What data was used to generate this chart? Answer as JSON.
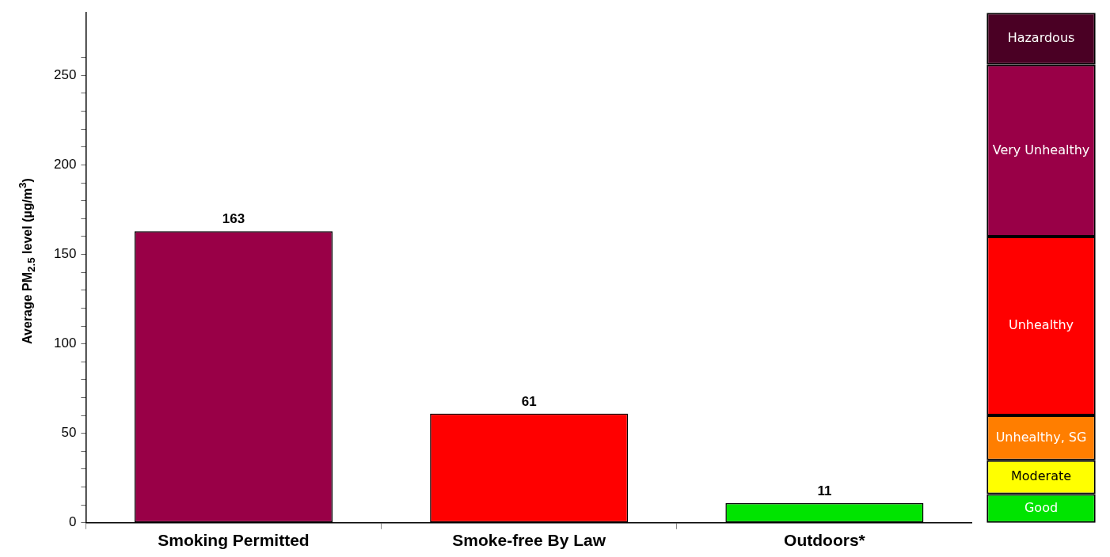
{
  "chart_data": [
    {
      "type": "bar",
      "ylabel": "Average PM$_{2.5}$ level (µg/m$^{3}$)",
      "categories": [
        "Smoking Permitted",
        "Smoke-free By Law",
        "Outdoors*"
      ],
      "values": [
        163,
        61,
        11
      ],
      "colors": [
        "#990047",
        "#ff0000",
        "#00e400"
      ],
      "ylim": [
        0,
        285
      ],
      "yticks": [
        0,
        {
          "value": 10,
          "label": null
        },
        {
          "value": 20,
          "label": null
        },
        {
          "value": 30,
          "label": null
        },
        {
          "value": 40,
          "label": null
        },
        50,
        {
          "value": 60,
          "label": null
        },
        {
          "value": 70,
          "label": null
        },
        {
          "value": 80,
          "label": null
        },
        {
          "value": 90,
          "label": null
        },
        100,
        {
          "value": 110,
          "label": null
        },
        {
          "value": 120,
          "label": null
        },
        {
          "value": 130,
          "label": null
        },
        {
          "value": 140,
          "label": null
        },
        150,
        {
          "value": 160,
          "label": null
        },
        {
          "value": 170,
          "label": null
        },
        {
          "value": 180,
          "label": null
        },
        {
          "value": 190,
          "label": null
        },
        200,
        {
          "value": 210,
          "label": null
        },
        {
          "value": 220,
          "label": null
        },
        {
          "value": 230,
          "label": null
        },
        {
          "value": 240,
          "label": null
        },
        250,
        {
          "value": 260,
          "label": null
        }
      ],
      "data_labels": true,
      "grid": false,
      "legend": false
    },
    {
      "type": "bar",
      "stacked": true,
      "categories": [
        null
      ],
      "ylim": [
        0,
        285
      ],
      "tick_labels": false,
      "legend": false,
      "series": [
        {
          "name": "Good",
          "color": "#00e400",
          "values": [
            16
          ]
        },
        {
          "name": "Moderate",
          "color": "#ffff00",
          "values": [
            19
          ]
        },
        {
          "name": "Unhealthy, SG",
          "color": "#ff7e00",
          "values": [
            25
          ]
        },
        {
          "name": "Unhealthy",
          "color": "#ff0000",
          "values": [
            100
          ]
        },
        {
          "name": "Very Unhealthy",
          "color": "#990047",
          "values": [
            96
          ]
        },
        {
          "name": "Hazardous",
          "color": "#4a0024",
          "values": [
            29
          ]
        }
      ]
    }
  ]
}
